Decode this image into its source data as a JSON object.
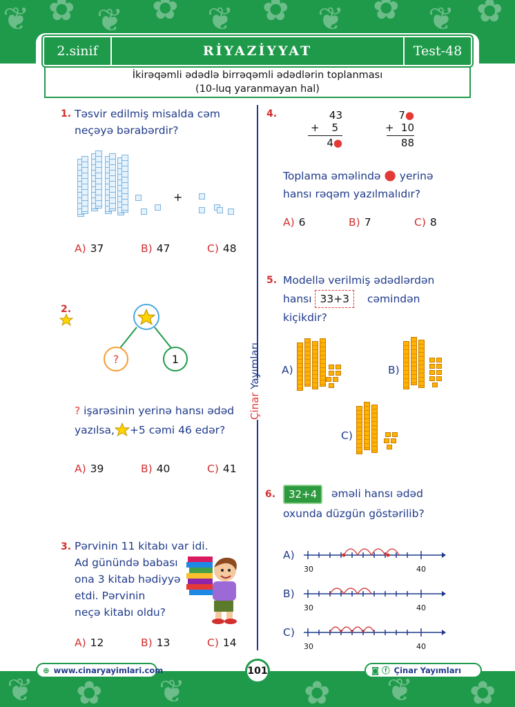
{
  "header": {
    "grade": "2.sinif",
    "subject": "RİYAZİYYAT",
    "test": "Test-48"
  },
  "subtitle": {
    "line1": "İkirəqəmli ədədlə birrəqəmli ədədlərin toplanması",
    "line2": "(10-luq yaranmayan hal)"
  },
  "side_label": {
    "red": "Çinar",
    "blue": "Yayımları"
  },
  "q1": {
    "num": "1.",
    "text1": "Təsvir edilmiş misalda cəm",
    "text2": "neçəyə bərabərdir?",
    "plus": "+",
    "answers": [
      {
        "l": "A)",
        "v": "37"
      },
      {
        "l": "B)",
        "v": "47"
      },
      {
        "l": "C)",
        "v": "48"
      }
    ]
  },
  "q2": {
    "num": "2.",
    "unknown": "?",
    "one": "1",
    "text1_q": "?",
    "text1": "işarəsinin yerinə hansı ədəd",
    "text2a": "yazılsa,",
    "text2b": "+5 cəmi 46 edər?",
    "answers": [
      {
        "l": "A)",
        "v": "39"
      },
      {
        "l": "B)",
        "v": "40"
      },
      {
        "l": "C)",
        "v": "41"
      }
    ]
  },
  "q3": {
    "num": "3.",
    "lines": [
      "Pərvinin 11 kitabı var idi.",
      "Ad günündə babası",
      "ona 3 kitab hədiyyə",
      "etdi. Pərvinin",
      "neçə kitabı oldu?"
    ],
    "answers": [
      {
        "l": "A)",
        "v": "12"
      },
      {
        "l": "B)",
        "v": "13"
      },
      {
        "l": "C)",
        "v": "14"
      }
    ]
  },
  "q4": {
    "num": "4.",
    "left": {
      "a": "43",
      "b": "5",
      "plus": "+",
      "res": "4"
    },
    "right": {
      "a": "7",
      "b": "10",
      "plus": "+",
      "res": "88"
    },
    "text1a": "Toplama əməlində",
    "text1b": "yerinə",
    "text2": "hansı rəqəm yazılmalıdır?",
    "answers": [
      {
        "l": "A)",
        "v": "6"
      },
      {
        "l": "B)",
        "v": "7"
      },
      {
        "l": "C)",
        "v": "8"
      }
    ]
  },
  "q5": {
    "num": "5.",
    "text1": "Modellə verilmiş ədədlərdən",
    "text2a": "hansı",
    "box": "33+3",
    "text2b": "cəmindən",
    "text3": "kiçikdir?",
    "labels": [
      "A)",
      "B)",
      "C)"
    ]
  },
  "q6": {
    "num": "6.",
    "box": "32+4",
    "text1": "əməli hansı ədəd",
    "text2": "oxunda düzgün göstərilib?",
    "lines": [
      {
        "l": "A)",
        "start": "30",
        "end": "40"
      },
      {
        "l": "B)",
        "start": "30",
        "end": "40"
      },
      {
        "l": "C)",
        "start": "30",
        "end": "40"
      }
    ]
  },
  "footer": {
    "website": "www.cinaryayimlari.com",
    "page": "101",
    "brand": "Çinar Yayımları"
  },
  "colors": {
    "green": "#1e9a4a",
    "blue": "#1f3a8a",
    "red": "#d32f2f",
    "orange": "#ffb300"
  }
}
